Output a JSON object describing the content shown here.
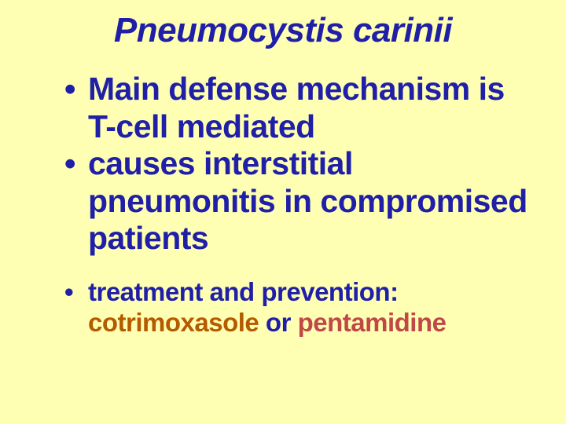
{
  "slide": {
    "background_color": "#ffffb3",
    "text_color": "#1f1fa8",
    "title": "Pneumocystis carinii",
    "title_fontsize": 44,
    "title_italic": true,
    "title_bold": true,
    "bullets": [
      {
        "text": "Main defense mechanism is T-cell mediated",
        "fontsize": 41,
        "bold": true
      },
      {
        "text": "causes interstitial pneumonitis in compromised patients",
        "fontsize": 41,
        "bold": true
      },
      {
        "text_prefix": "treatment and prevention: ",
        "highlight_1": "cotrimoxasole",
        "highlight_1_color": "#b45a00",
        "join": " or ",
        "highlight_2": "pentamidine",
        "highlight_2_color": "#c04848",
        "fontsize": 33,
        "bold": true
      }
    ],
    "bullet_char": "•",
    "font_family": "Verdana"
  }
}
